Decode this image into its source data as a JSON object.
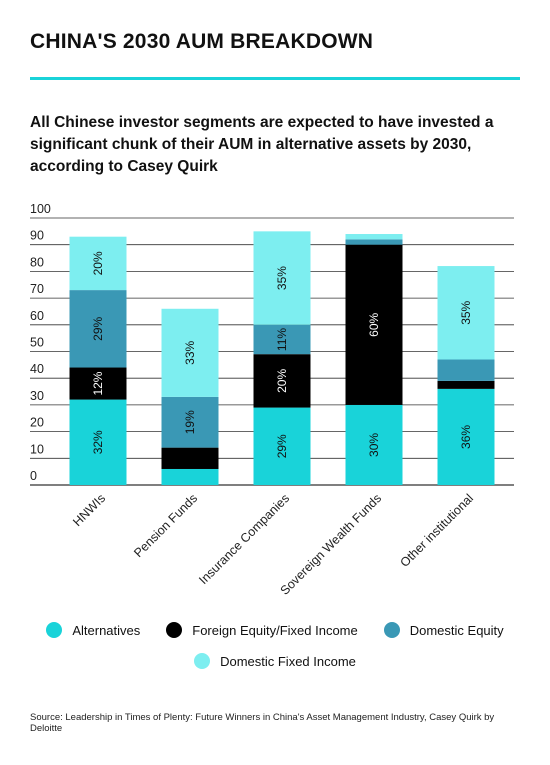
{
  "header": {
    "title": "CHINA'S 2030 AUM BREAKDOWN",
    "subtitle": "All Chinese investor segments are expected to have invested a significant chunk of their AUM in alternative assets by 2030, according to Casey Quirk"
  },
  "source": "Source:  Leadership in Times of Plenty: Future Winners in China's Asset Management Industry, Casey Quirk by Deloitte",
  "colors": {
    "alternatives": "#19d3d9",
    "foreign": "#000000",
    "domestic_equity": "#3a98b5",
    "domestic_fixed": "#7deef0",
    "grid": "#333333",
    "rule": "#19d3d9"
  },
  "chart_data": {
    "type": "bar",
    "stacked": true,
    "categories": [
      "HNWIs",
      "Pension Funds",
      "Insurance Companies",
      "Sovereign Wealth Funds",
      "Other institutional"
    ],
    "ylim": [
      0,
      100
    ],
    "yticks": [
      0,
      10,
      20,
      30,
      40,
      50,
      60,
      70,
      80,
      90,
      100
    ],
    "grid": true,
    "legend_position": "bottom",
    "series": [
      {
        "name": "Alternatives",
        "key": "alternatives",
        "values": [
          32,
          6,
          29,
          30,
          36
        ],
        "labels": [
          "32%",
          "",
          "29%",
          "30%",
          "36%"
        ]
      },
      {
        "name": "Foreign Equity/Fixed Income",
        "key": "foreign",
        "values": [
          12,
          8,
          20,
          60,
          3
        ],
        "labels": [
          "12%",
          "",
          "20%",
          "60%",
          ""
        ]
      },
      {
        "name": "Domestic Equity",
        "key": "domestic_equity",
        "values": [
          29,
          19,
          11,
          2,
          8
        ],
        "labels": [
          "29%",
          "19%",
          "11%",
          "",
          ""
        ]
      },
      {
        "name": "Domestic Fixed Income",
        "key": "domestic_fixed",
        "values": [
          20,
          33,
          35,
          2,
          35
        ],
        "labels": [
          "20%",
          "33%",
          "35%",
          "",
          "35%"
        ]
      }
    ]
  }
}
